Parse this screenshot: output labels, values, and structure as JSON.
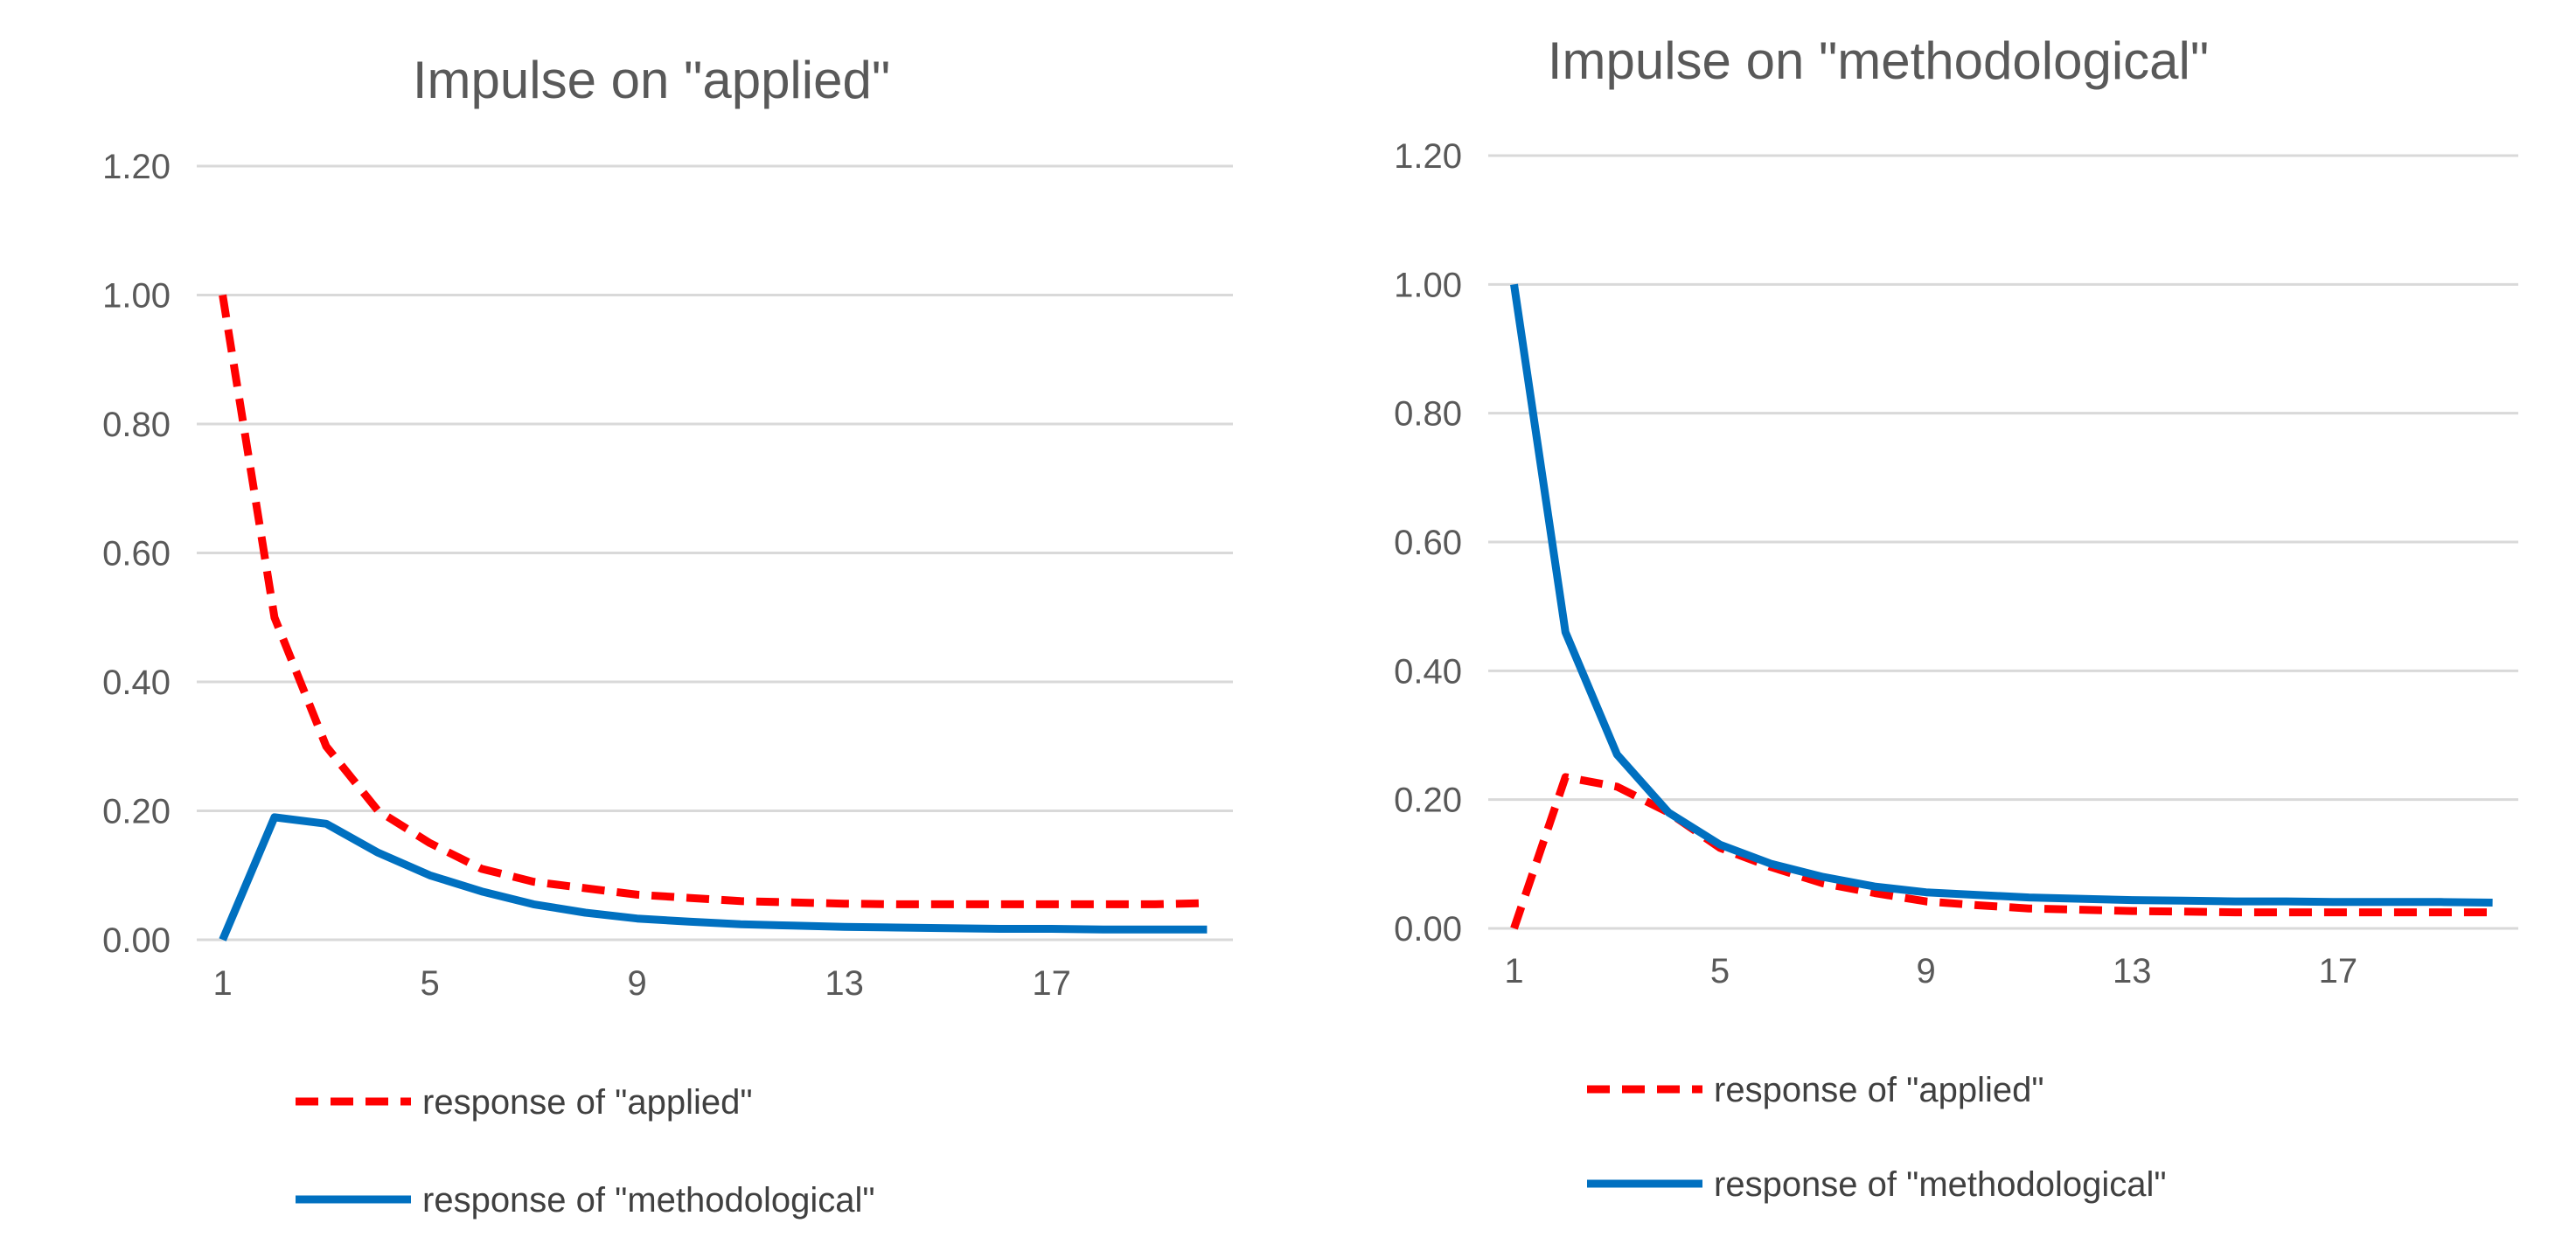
{
  "chart_data": [
    {
      "type": "line",
      "title": "Impulse on \"applied\"",
      "xlabel": "",
      "ylabel": "",
      "x": [
        1,
        2,
        3,
        4,
        5,
        6,
        7,
        8,
        9,
        10,
        11,
        12,
        13,
        14,
        15,
        16,
        17,
        18,
        19,
        20
      ],
      "x_tick_labels": [
        "1",
        "5",
        "9",
        "13",
        "17"
      ],
      "y_tick_labels": [
        "0.00",
        "0.20",
        "0.40",
        "0.60",
        "0.80",
        "1.00",
        "1.20"
      ],
      "ylim": [
        0,
        1.2
      ],
      "grid": true,
      "legend_position": "bottom",
      "series": [
        {
          "name": "response of \"applied\"",
          "color": "#ff0000",
          "style": "dashed",
          "values": [
            1.0,
            0.5,
            0.3,
            0.2,
            0.15,
            0.11,
            0.09,
            0.08,
            0.07,
            0.065,
            0.06,
            0.058,
            0.056,
            0.055,
            0.055,
            0.055,
            0.055,
            0.055,
            0.055,
            0.057
          ]
        },
        {
          "name": "response of \"methodological\"",
          "color": "#0070c0",
          "style": "solid",
          "values": [
            0.0,
            0.19,
            0.18,
            0.135,
            0.1,
            0.075,
            0.055,
            0.042,
            0.033,
            0.028,
            0.024,
            0.022,
            0.02,
            0.019,
            0.018,
            0.017,
            0.017,
            0.016,
            0.016,
            0.016
          ]
        }
      ]
    },
    {
      "type": "line",
      "title": "Impulse on \"methodological\"",
      "xlabel": "",
      "ylabel": "",
      "x": [
        1,
        2,
        3,
        4,
        5,
        6,
        7,
        8,
        9,
        10,
        11,
        12,
        13,
        14,
        15,
        16,
        17,
        18,
        19,
        20
      ],
      "x_tick_labels": [
        "1",
        "5",
        "9",
        "13",
        "17"
      ],
      "y_tick_labels": [
        "0.00",
        "0.20",
        "0.40",
        "0.60",
        "0.80",
        "1.00",
        "1.20"
      ],
      "ylim": [
        0,
        1.2
      ],
      "grid": true,
      "legend_position": "bottom",
      "series": [
        {
          "name": "response of \"applied\"",
          "color": "#ff0000",
          "style": "dashed",
          "values": [
            0.0,
            0.235,
            0.22,
            0.18,
            0.125,
            0.095,
            0.07,
            0.055,
            0.042,
            0.036,
            0.031,
            0.029,
            0.027,
            0.026,
            0.025,
            0.025,
            0.025,
            0.025,
            0.025,
            0.025
          ]
        },
        {
          "name": "response of \"methodological\"",
          "color": "#0070c0",
          "style": "solid",
          "values": [
            1.0,
            0.46,
            0.27,
            0.18,
            0.13,
            0.1,
            0.08,
            0.065,
            0.056,
            0.052,
            0.048,
            0.046,
            0.044,
            0.043,
            0.042,
            0.042,
            0.041,
            0.041,
            0.041,
            0.04
          ]
        }
      ]
    }
  ]
}
